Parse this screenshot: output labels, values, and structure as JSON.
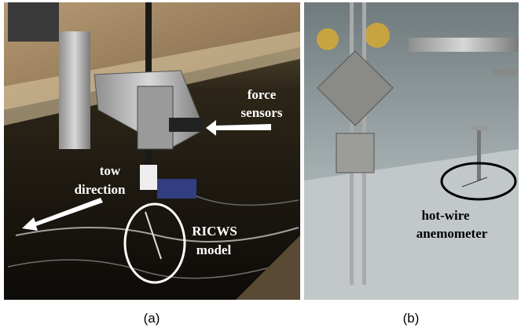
{
  "panels": [
    {
      "caption": "(a)",
      "annotations": [
        {
          "lines": [
            "force",
            "sensors"
          ]
        },
        {
          "lines": [
            "tow",
            "direction"
          ]
        },
        {
          "lines": [
            "RICWS",
            "model"
          ]
        }
      ]
    },
    {
      "caption": "(b)",
      "annotations": [
        {
          "lines": [
            "hot-wire",
            "anemometer"
          ]
        }
      ]
    }
  ]
}
